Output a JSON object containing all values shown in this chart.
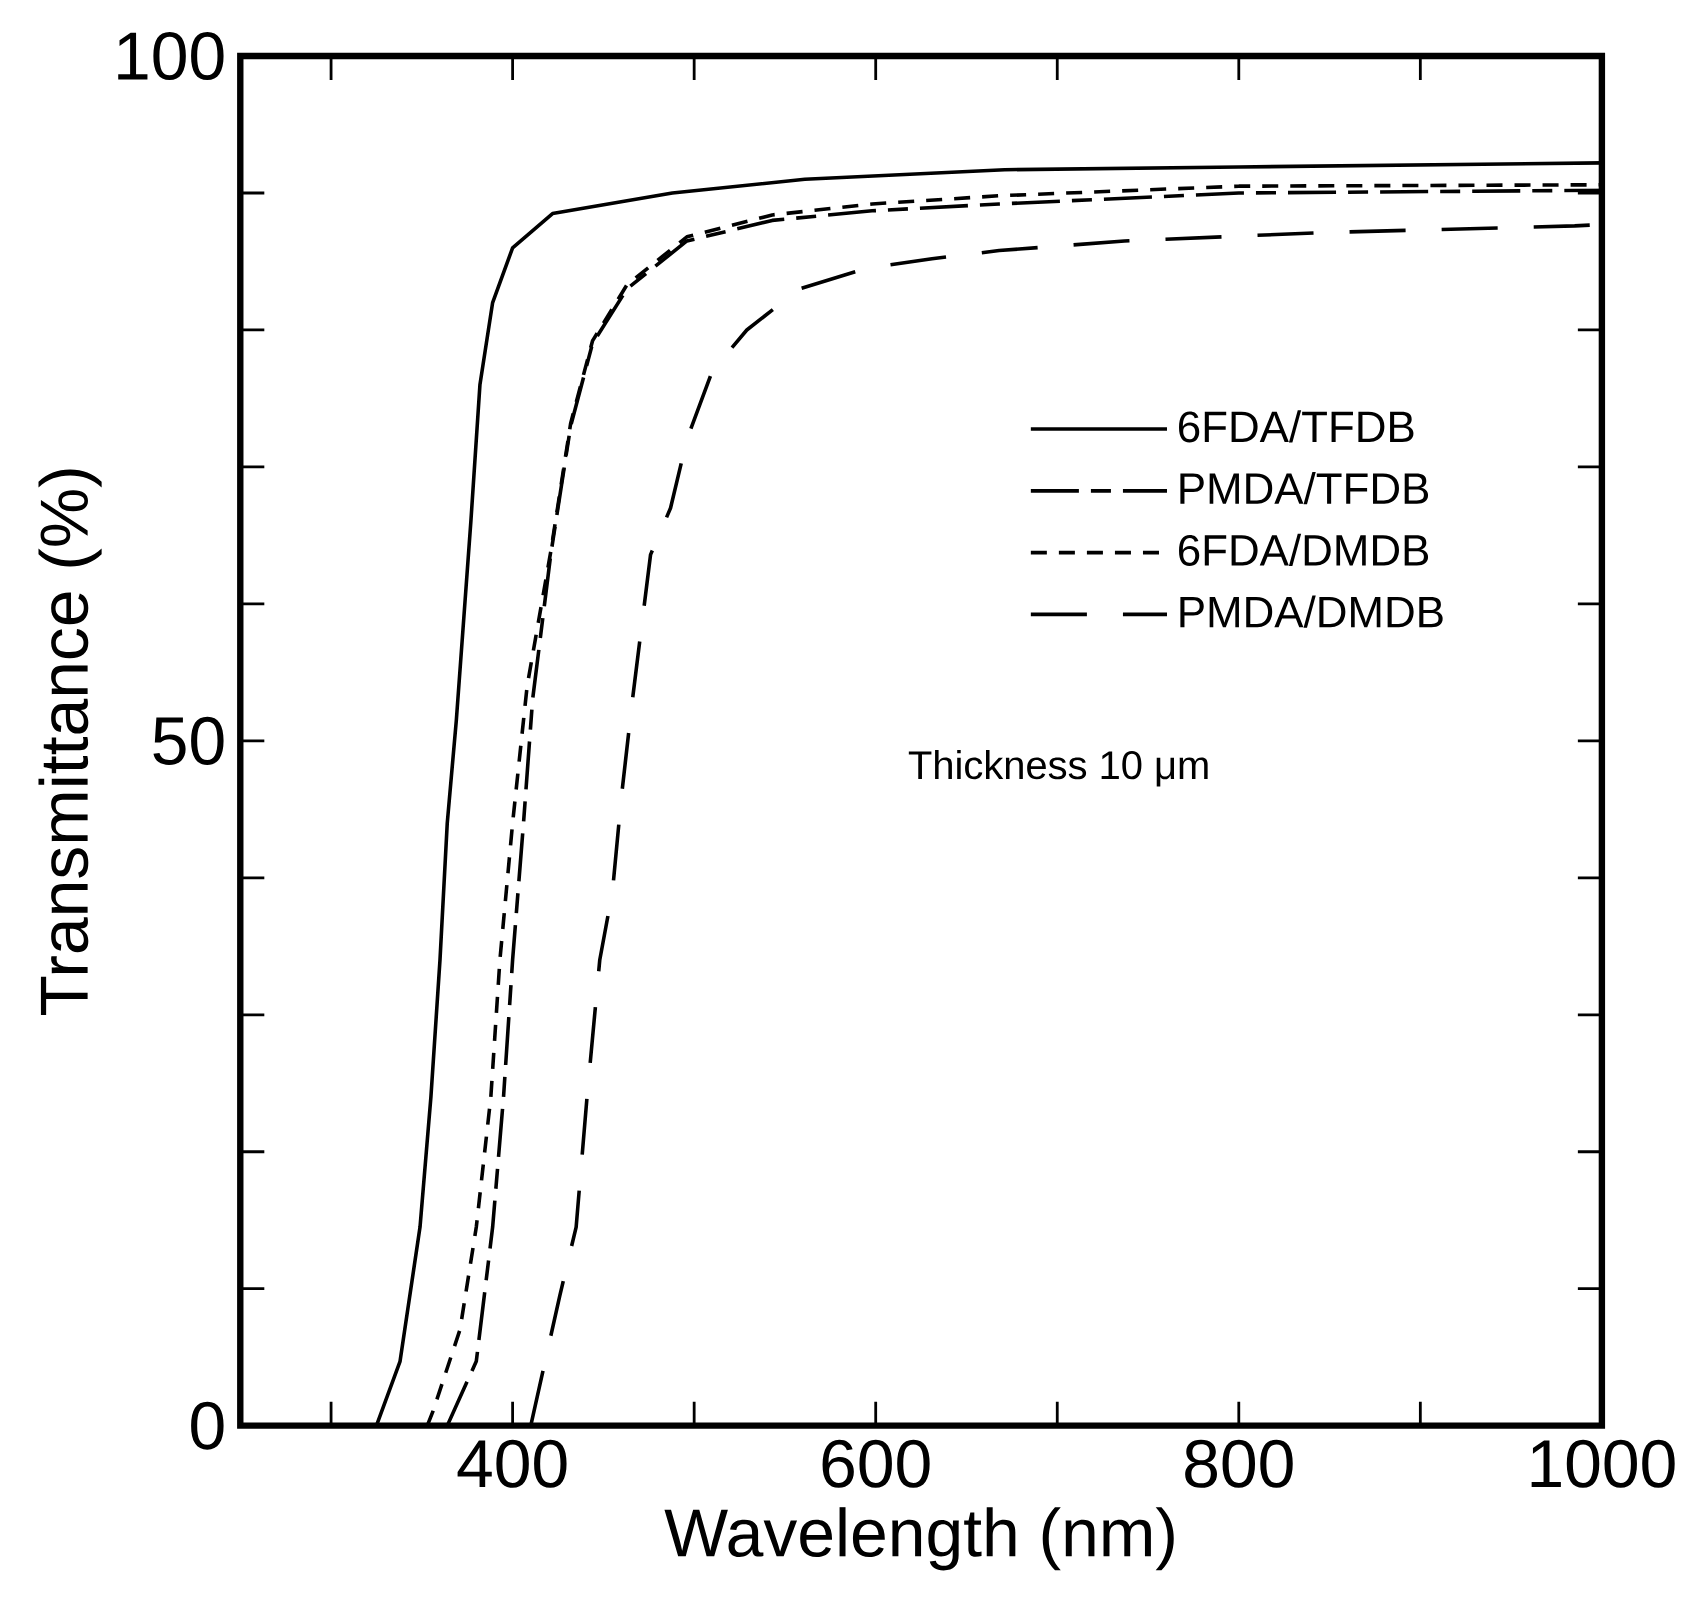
{
  "chart_data": {
    "type": "line",
    "xlabel": "Wavelength (nm)",
    "ylabel": "Transmittance (%)",
    "xlim": [
      250,
      1000
    ],
    "ylim": [
      0,
      100
    ],
    "xticks": [
      {
        "value": 300,
        "label": null
      },
      400,
      {
        "value": 500,
        "label": null
      },
      600,
      {
        "value": 700,
        "label": null
      },
      800,
      {
        "value": 900,
        "label": null
      },
      1000
    ],
    "yticks": [
      0,
      {
        "value": 10,
        "label": null
      },
      {
        "value": 20,
        "label": null
      },
      {
        "value": 30,
        "label": null
      },
      {
        "value": 40,
        "label": null
      },
      50,
      {
        "value": 60,
        "label": null
      },
      {
        "value": 70,
        "label": null
      },
      {
        "value": 80,
        "label": null
      },
      {
        "value": 90,
        "label": null
      },
      100
    ],
    "legend": "right",
    "grid": false,
    "annotations": [
      "Thickness 10 μm"
    ],
    "series": [
      {
        "name": "6FDA/TFDB",
        "color": "#000000",
        "line_style": "solid",
        "x": [
          325,
          338,
          349,
          355,
          360,
          364,
          369,
          377,
          382,
          389,
          400,
          422,
          488,
          561,
          671,
          800,
          1000
        ],
        "values": [
          0,
          4.7,
          14.5,
          24,
          34,
          44,
          51.5,
          66,
          76,
          82,
          86,
          88.5,
          90,
          91,
          91.7,
          91.9,
          92.2
        ]
      },
      {
        "name": "PMDA/TFDB",
        "color": "#000000",
        "line_style": "dashdot",
        "x": [
          364,
          380,
          389,
          395,
          400,
          406,
          411,
          421,
          432,
          444,
          463,
          496,
          543,
          598,
          668,
          800,
          1000
        ],
        "values": [
          0,
          4.7,
          14.5,
          24,
          34,
          44,
          53,
          63.6,
          73,
          79,
          83,
          86.5,
          88,
          88.7,
          89.2,
          90,
          90.2
        ]
      },
      {
        "name": "6FDA/DMDB",
        "color": "#000000",
        "line_style": "dotted",
        "x": [
          353,
          356,
          371,
          380,
          388,
          393,
          400,
          408,
          421,
          432,
          444,
          463,
          496,
          543,
          598,
          668,
          800,
          1000
        ],
        "values": [
          0,
          1,
          7,
          14.5,
          24,
          34,
          44,
          54,
          63.8,
          73.2,
          79.2,
          83.3,
          86.8,
          88.4,
          89.2,
          89.8,
          90.5,
          90.6
        ]
      },
      {
        "name": "PMDA/DMDB",
        "color": "#000000",
        "line_style": "dashed",
        "x": [
          410,
          426,
          435,
          441,
          448,
          455,
          460,
          466,
          476,
          487,
          496,
          510,
          529,
          558,
          595,
          631,
          668,
          737,
          844,
          985,
          1000
        ],
        "values": [
          0,
          9.5,
          14.5,
          24,
          34,
          39,
          46,
          53,
          63.6,
          67,
          72,
          77,
          80,
          83,
          84.5,
          85.2,
          85.8,
          86.5,
          87.1,
          87.6,
          87.7
        ]
      }
    ]
  }
}
